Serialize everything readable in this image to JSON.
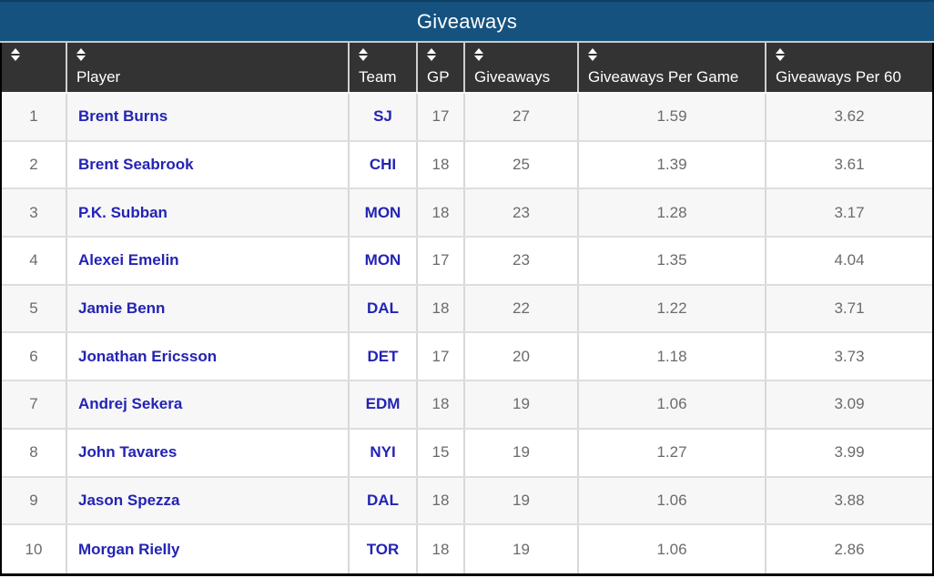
{
  "title_bar": {
    "title": "Giveaways"
  },
  "columns": [
    {
      "label": "",
      "sortable": true
    },
    {
      "label": "Player",
      "sortable": true
    },
    {
      "label": "Team",
      "sortable": true
    },
    {
      "label": "GP",
      "sortable": true
    },
    {
      "label": "Giveaways",
      "sortable": true
    },
    {
      "label": "Giveaways Per Game",
      "sortable": true
    },
    {
      "label": "Giveaways Per 60",
      "sortable": true
    }
  ],
  "rows": [
    {
      "rank": "1",
      "player": "Brent Burns",
      "team": "SJ",
      "gp": "17",
      "giveaways": "27",
      "giveaways_per_game": "1.59",
      "giveaways_per_60": "3.62"
    },
    {
      "rank": "2",
      "player": "Brent Seabrook",
      "team": "CHI",
      "gp": "18",
      "giveaways": "25",
      "giveaways_per_game": "1.39",
      "giveaways_per_60": "3.61"
    },
    {
      "rank": "3",
      "player": "P.K. Subban",
      "team": "MON",
      "gp": "18",
      "giveaways": "23",
      "giveaways_per_game": "1.28",
      "giveaways_per_60": "3.17"
    },
    {
      "rank": "4",
      "player": "Alexei Emelin",
      "team": "MON",
      "gp": "17",
      "giveaways": "23",
      "giveaways_per_game": "1.35",
      "giveaways_per_60": "4.04"
    },
    {
      "rank": "5",
      "player": "Jamie Benn",
      "team": "DAL",
      "gp": "18",
      "giveaways": "22",
      "giveaways_per_game": "1.22",
      "giveaways_per_60": "3.71"
    },
    {
      "rank": "6",
      "player": "Jonathan Ericsson",
      "team": "DET",
      "gp": "17",
      "giveaways": "20",
      "giveaways_per_game": "1.18",
      "giveaways_per_60": "3.73"
    },
    {
      "rank": "7",
      "player": "Andrej Sekera",
      "team": "EDM",
      "gp": "18",
      "giveaways": "19",
      "giveaways_per_game": "1.06",
      "giveaways_per_60": "3.09"
    },
    {
      "rank": "8",
      "player": "John Tavares",
      "team": "NYI",
      "gp": "15",
      "giveaways": "19",
      "giveaways_per_game": "1.27",
      "giveaways_per_60": "3.99"
    },
    {
      "rank": "9",
      "player": "Jason Spezza",
      "team": "DAL",
      "gp": "18",
      "giveaways": "19",
      "giveaways_per_game": "1.06",
      "giveaways_per_60": "3.88"
    },
    {
      "rank": "10",
      "player": "Morgan Rielly",
      "team": "TOR",
      "gp": "18",
      "giveaways": "19",
      "giveaways_per_game": "1.06",
      "giveaways_per_60": "2.86"
    }
  ],
  "colors": {
    "title_bar_bg": "#15527F",
    "header_bg": "#333333",
    "link_blue": "#2323B4",
    "value_gray": "#6B6B6B",
    "stripe_bg": "#F7F7F7",
    "outer_border": "#000000"
  },
  "icons": {
    "sort": "sort-asc-desc-arrows"
  }
}
